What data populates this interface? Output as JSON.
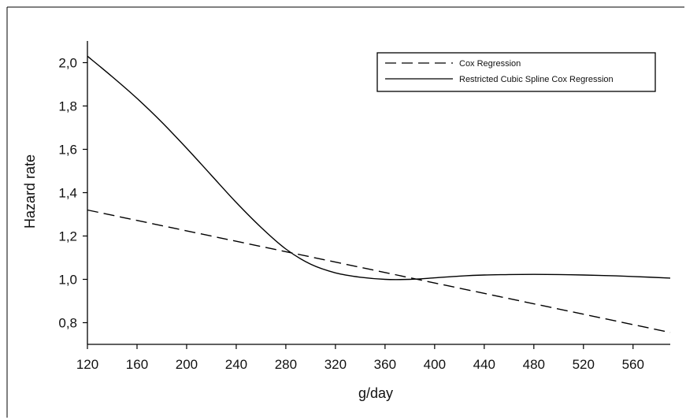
{
  "chart_data": {
    "type": "line",
    "title": "",
    "xlabel": "g/day",
    "ylabel": "Hazard rate",
    "xlim": [
      120,
      590
    ],
    "ylim": [
      0.7,
      2.1
    ],
    "x_ticks": [
      120,
      160,
      200,
      240,
      280,
      320,
      360,
      400,
      440,
      480,
      520,
      560
    ],
    "x_tick_labels": [
      "120",
      "160",
      "200",
      "240",
      "280",
      "320",
      "360",
      "400",
      "440",
      "480",
      "520",
      "560"
    ],
    "y_ticks": [
      0.8,
      1.0,
      1.2,
      1.4,
      1.6,
      1.8,
      2.0
    ],
    "y_tick_labels": [
      "0,8",
      "1,0",
      "1,2",
      "1,4",
      "1,6",
      "1,8",
      "2,0"
    ],
    "grid": false,
    "legend_position": "top-right",
    "series": [
      {
        "name": "Cox Regression",
        "style": "dashed",
        "color": "#000000",
        "x": [
          120,
          590
        ],
        "y": [
          1.32,
          0.755
        ]
      },
      {
        "name": "Restricted Cubic Spline Cox Regression",
        "style": "solid",
        "color": "#000000",
        "x": [
          120,
          140,
          160,
          180,
          200,
          220,
          240,
          260,
          280,
          300,
          320,
          340,
          360,
          380,
          400,
          420,
          440,
          460,
          480,
          500,
          520,
          540,
          560,
          590
        ],
        "y": [
          2.03,
          1.935,
          1.835,
          1.725,
          1.605,
          1.48,
          1.355,
          1.24,
          1.14,
          1.07,
          1.03,
          1.01,
          1.0,
          1.0,
          1.007,
          1.015,
          1.02,
          1.022,
          1.023,
          1.022,
          1.02,
          1.017,
          1.013,
          1.006
        ]
      }
    ]
  }
}
